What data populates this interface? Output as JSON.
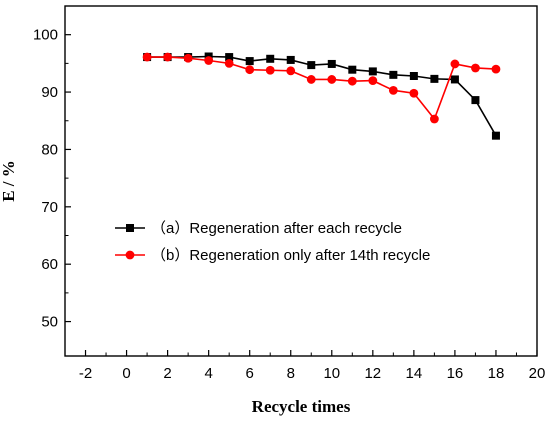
{
  "chart_data": {
    "type": "line",
    "xlabel": "Recycle times",
    "ylabel": "E / %",
    "xlim": [
      -3,
      20
    ],
    "ylim": [
      44,
      105
    ],
    "x_ticks": [
      -2,
      0,
      2,
      4,
      6,
      8,
      10,
      12,
      14,
      16,
      18,
      20
    ],
    "y_ticks": [
      50,
      60,
      70,
      80,
      90,
      100
    ],
    "grid": false,
    "legend_position": "center-left",
    "series": [
      {
        "name": "（a）Regeneration after each recycle",
        "color": "#000000",
        "marker": "square",
        "x": [
          1,
          2,
          3,
          4,
          5,
          6,
          7,
          8,
          9,
          10,
          11,
          12,
          13,
          14,
          15,
          16,
          17,
          18
        ],
        "y": [
          96.1,
          96.1,
          96.1,
          96.2,
          96.1,
          95.4,
          95.8,
          95.6,
          94.7,
          94.9,
          93.9,
          93.6,
          93.0,
          92.8,
          92.3,
          92.2,
          88.6,
          82.4
        ]
      },
      {
        "name": "（b）Regeneration only after 14th recycle",
        "color": "#ff0000",
        "marker": "circle",
        "x": [
          1,
          2,
          3,
          4,
          5,
          6,
          7,
          8,
          9,
          10,
          11,
          12,
          13,
          14,
          15,
          16,
          17,
          18
        ],
        "y": [
          96.1,
          96.1,
          95.9,
          95.5,
          95.0,
          93.9,
          93.8,
          93.7,
          92.2,
          92.2,
          91.9,
          92.0,
          90.3,
          89.8,
          85.3,
          94.9,
          94.2,
          94.0
        ]
      }
    ]
  }
}
